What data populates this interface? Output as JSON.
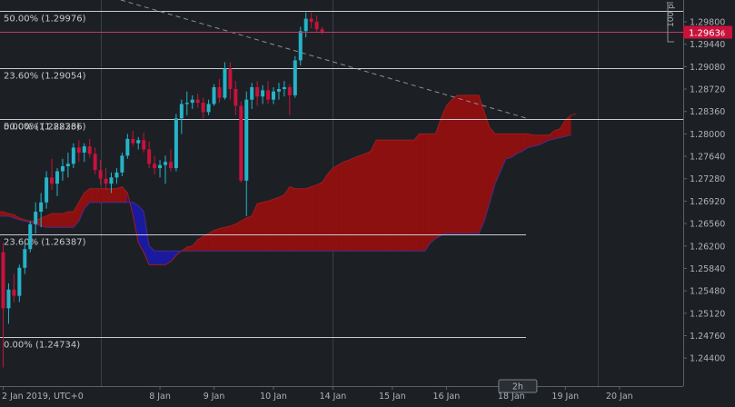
{
  "chart_data": {
    "type": "candlestick",
    "symbol_timeframe": "2h",
    "timezone": "UTC+0",
    "y_range": [
      1.2395,
      1.3015
    ],
    "y_ticks": [
      "1.29800",
      "1.29440",
      "1.29080",
      "1.28720",
      "1.28360",
      "1.28000",
      "1.27640",
      "1.27280",
      "1.26920",
      "1.26560",
      "1.26200",
      "1.25840",
      "1.25480",
      "1.25120",
      "1.24760",
      "1.24400"
    ],
    "x_ticks": [
      {
        "label": "2 Jan 2019, UTC+0",
        "bar": 0
      },
      {
        "label": "8 Jan",
        "bar": 29
      },
      {
        "label": "9 Jan",
        "bar": 39
      },
      {
        "label": "10 Jan",
        "bar": 50
      },
      {
        "label": "14 Jan",
        "bar": 61
      },
      {
        "label": "15 Jan",
        "bar": 72
      },
      {
        "label": "16 Jan",
        "bar": 82
      },
      {
        "label": "18 Jan",
        "bar": 94
      },
      {
        "label": "19 Jan",
        "bar": 104
      },
      {
        "label": "20 Jan",
        "bar": 114
      }
    ],
    "current_price_label": "1.2963",
    "current_price_suffix": "6",
    "current_price": 1.29636,
    "scale_label": "100 pi",
    "fib_levels": [
      {
        "label": "50.00% (1.29976)",
        "price": 1.29976
      },
      {
        "label": "23.60% (1.29054)",
        "price": 1.29054
      },
      {
        "label": "50.00% (1.28236)",
        "price": 1.28236
      },
      {
        "label": "0.00% (1.28236)",
        "price": 1.28236
      },
      {
        "label": "23.60% (1.26387)",
        "price": 1.26387
      },
      {
        "label": "0.00% (1.24734)",
        "price": 1.24734
      }
    ],
    "ohlc": [
      [
        1.261,
        1.2625,
        1.2425,
        1.252
      ],
      [
        1.252,
        1.256,
        1.2495,
        1.255
      ],
      [
        1.255,
        1.2575,
        1.253,
        1.254
      ],
      [
        1.254,
        1.259,
        1.253,
        1.2585
      ],
      [
        1.2585,
        1.2625,
        1.2575,
        1.2615
      ],
      [
        1.2615,
        1.266,
        1.261,
        1.2655
      ],
      [
        1.2655,
        1.269,
        1.264,
        1.2675
      ],
      [
        1.2675,
        1.2705,
        1.265,
        1.269
      ],
      [
        1.269,
        1.274,
        1.268,
        1.273
      ],
      [
        1.273,
        1.276,
        1.271,
        1.272
      ],
      [
        1.272,
        1.2745,
        1.27,
        1.274
      ],
      [
        1.274,
        1.276,
        1.2725,
        1.2748
      ],
      [
        1.2748,
        1.277,
        1.273,
        1.2752
      ],
      [
        1.2752,
        1.2785,
        1.2745,
        1.2778
      ],
      [
        1.2778,
        1.279,
        1.2755,
        1.277
      ],
      [
        1.277,
        1.2785,
        1.2755,
        1.278
      ],
      [
        1.278,
        1.2792,
        1.2762,
        1.2768
      ],
      [
        1.2768,
        1.2778,
        1.2735,
        1.2742
      ],
      [
        1.2742,
        1.2758,
        1.2718,
        1.2728
      ],
      [
        1.2728,
        1.2745,
        1.271,
        1.272
      ],
      [
        1.272,
        1.2738,
        1.2705,
        1.273
      ],
      [
        1.273,
        1.2745,
        1.272,
        1.2738
      ],
      [
        1.2738,
        1.277,
        1.2732,
        1.2765
      ],
      [
        1.2765,
        1.28,
        1.276,
        1.2792
      ],
      [
        1.2792,
        1.2805,
        1.278,
        1.2785
      ],
      [
        1.2785,
        1.2795,
        1.2775,
        1.279
      ],
      [
        1.279,
        1.2802,
        1.277,
        1.2775
      ],
      [
        1.2775,
        1.2788,
        1.2745,
        1.2752
      ],
      [
        1.2752,
        1.2765,
        1.2735,
        1.2745
      ],
      [
        1.2745,
        1.2758,
        1.273,
        1.275
      ],
      [
        1.275,
        1.2765,
        1.272,
        1.2755
      ],
      [
        1.2755,
        1.2775,
        1.274,
        1.2745
      ],
      [
        1.2745,
        1.2832,
        1.274,
        1.2825
      ],
      [
        1.2825,
        1.2855,
        1.28,
        1.2848
      ],
      [
        1.2848,
        1.2868,
        1.283,
        1.285
      ],
      [
        1.285,
        1.2862,
        1.284,
        1.2855
      ],
      [
        1.2855,
        1.2865,
        1.2842,
        1.285
      ],
      [
        1.285,
        1.2858,
        1.2825,
        1.2835
      ],
      [
        1.2835,
        1.2855,
        1.283,
        1.2848
      ],
      [
        1.2848,
        1.288,
        1.2845,
        1.2875
      ],
      [
        1.2875,
        1.2888,
        1.285,
        1.2858
      ],
      [
        1.2858,
        1.2915,
        1.2855,
        1.2905
      ],
      [
        1.2905,
        1.2915,
        1.2855,
        1.2872
      ],
      [
        1.2872,
        1.2885,
        1.283,
        1.2845
      ],
      [
        1.2845,
        1.2852,
        1.2722,
        1.2725
      ],
      [
        1.2725,
        1.2868,
        1.2668,
        1.2855
      ],
      [
        1.2855,
        1.2882,
        1.284,
        1.2875
      ],
      [
        1.2875,
        1.2885,
        1.2845,
        1.286
      ],
      [
        1.286,
        1.2878,
        1.2848,
        1.287
      ],
      [
        1.287,
        1.2885,
        1.2848,
        1.2855
      ],
      [
        1.2855,
        1.2875,
        1.2848,
        1.2868
      ],
      [
        1.2868,
        1.2882,
        1.2855,
        1.2872
      ],
      [
        1.2872,
        1.2885,
        1.286,
        1.2875
      ],
      [
        1.2875,
        1.288,
        1.283,
        1.2862
      ],
      [
        1.2862,
        1.2925,
        1.2858,
        1.2918
      ],
      [
        1.2918,
        1.2972,
        1.291,
        1.2965
      ],
      [
        1.2965,
        1.2995,
        1.2955,
        1.2985
      ],
      [
        1.2985,
        1.2995,
        1.297,
        1.298
      ],
      [
        1.298,
        1.299,
        1.2962,
        1.2968
      ],
      [
        1.2968,
        1.2972,
        1.296,
        1.29636
      ]
    ],
    "ichimoku_cloud": {
      "x_start": -4,
      "span_a": [
        1.268,
        1.268,
        1.2678,
        1.2675,
        1.2675,
        1.2672,
        1.267,
        1.2665,
        1.2662,
        1.266,
        1.266,
        1.2665,
        1.2668,
        1.2672,
        1.2672,
        1.2672,
        1.2675,
        1.2675,
        1.269,
        1.2705,
        1.2712,
        1.2712,
        1.2712,
        1.2712,
        1.2712,
        1.2712,
        1.2715,
        1.2705,
        1.267,
        1.2625,
        1.261,
        1.259,
        1.259,
        1.259,
        1.259,
        1.2595,
        1.2605,
        1.2612,
        1.2618,
        1.262,
        1.263,
        1.2635,
        1.264,
        1.2645,
        1.2648,
        1.265,
        1.2652,
        1.2655,
        1.266,
        1.2665,
        1.2668,
        1.2688,
        1.269,
        1.2692,
        1.2695,
        1.2698,
        1.2702,
        1.2715,
        1.2712,
        1.2712,
        1.2712,
        1.2715,
        1.2718,
        1.2722,
        1.2735,
        1.2745,
        1.275,
        1.2755,
        1.2758,
        1.2762,
        1.2765,
        1.2768,
        1.2772,
        1.279,
        1.279,
        1.279,
        1.279,
        1.279,
        1.279,
        1.279,
        1.279,
        1.28,
        1.28,
        1.28,
        1.28,
        1.2825,
        1.2845,
        1.2855,
        1.2862,
        1.2862,
        1.2862,
        1.2862,
        1.2862,
        1.2835,
        1.281,
        1.28,
        1.28,
        1.28,
        1.28,
        1.28,
        1.28,
        1.28,
        1.2798,
        1.2798,
        1.2798,
        1.2798,
        1.2805,
        1.2808,
        1.2822,
        1.283,
        1.2832
      ],
      "span_b": [
        1.2668,
        1.2668,
        1.2668,
        1.2668,
        1.2668,
        1.2668,
        1.2665,
        1.2662,
        1.266,
        1.2658,
        1.2655,
        1.2652,
        1.265,
        1.265,
        1.265,
        1.265,
        1.265,
        1.265,
        1.266,
        1.268,
        1.269,
        1.269,
        1.269,
        1.269,
        1.269,
        1.269,
        1.269,
        1.269,
        1.269,
        1.2685,
        1.2675,
        1.262,
        1.2612,
        1.2612,
        1.2612,
        1.2612,
        1.2612,
        1.2612,
        1.2612,
        1.2612,
        1.2612,
        1.2612,
        1.2612,
        1.2612,
        1.2612,
        1.2612,
        1.2612,
        1.2612,
        1.2612,
        1.2612,
        1.2612,
        1.2612,
        1.2612,
        1.2612,
        1.2612,
        1.2612,
        1.2612,
        1.2612,
        1.2612,
        1.2612,
        1.2612,
        1.2612,
        1.2612,
        1.2612,
        1.2612,
        1.2612,
        1.2612,
        1.2612,
        1.2612,
        1.2612,
        1.2612,
        1.2612,
        1.2612,
        1.2612,
        1.2612,
        1.2612,
        1.2612,
        1.2612,
        1.2612,
        1.2612,
        1.2612,
        1.2612,
        1.2612,
        1.2625,
        1.2632,
        1.2637,
        1.264,
        1.264,
        1.264,
        1.264,
        1.264,
        1.264,
        1.264,
        1.266,
        1.269,
        1.272,
        1.274,
        1.276,
        1.2762,
        1.2768,
        1.2772,
        1.2778,
        1.278,
        1.2782,
        1.2786,
        1.279,
        1.2792,
        1.2794,
        1.2796,
        1.2798
      ]
    }
  }
}
